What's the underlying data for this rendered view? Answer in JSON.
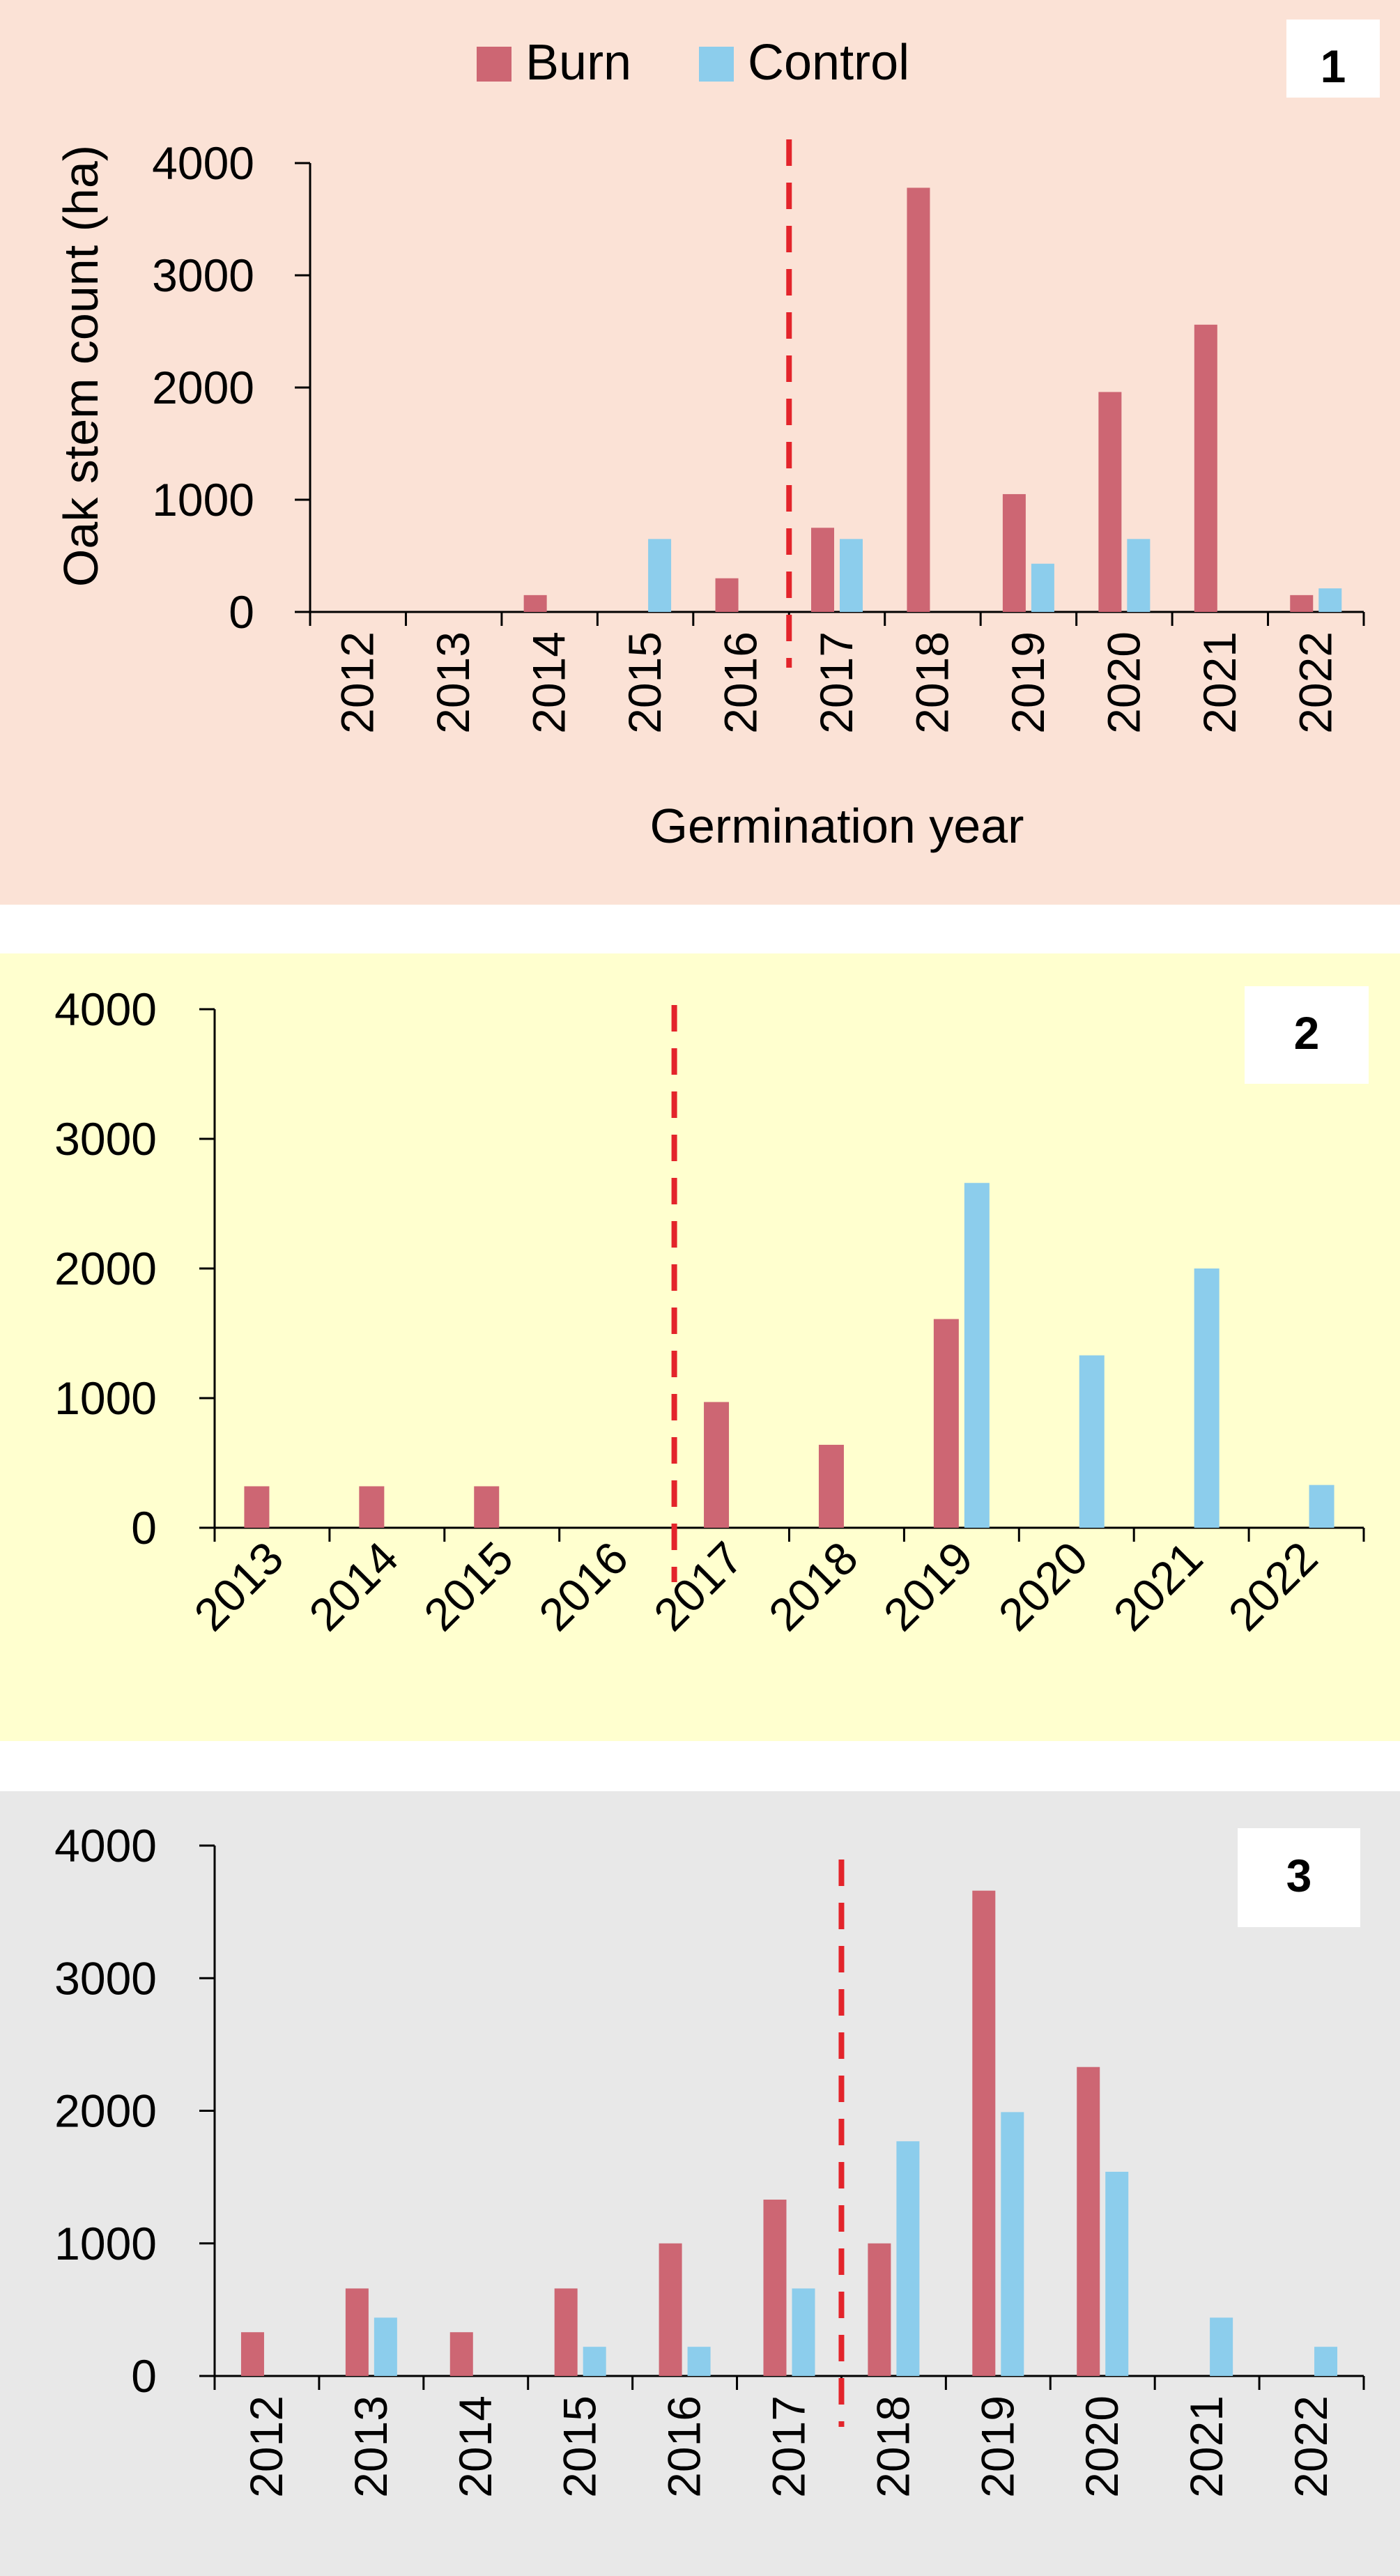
{
  "legend": [
    {
      "name": "Burn",
      "color": "#cd6673"
    },
    {
      "name": "Control",
      "color": "#8ccdec"
    }
  ],
  "colors": {
    "burn": "#cd6673",
    "control": "#8ccdec",
    "reference_line": "#e3242b",
    "panel1_bg": "#fbe2d6",
    "panel2_bg": "#ffffcf",
    "panel3_bg": "#e8e8e8"
  },
  "chart_data": [
    {
      "type": "bar",
      "panel_label": "1",
      "title": "",
      "xlabel": "Germination year",
      "ylabel": "Oak stem count (ha)",
      "ylim": [
        0,
        4000
      ],
      "yticks": [
        "0",
        "1000",
        "2000",
        "3000",
        "4000"
      ],
      "grid": false,
      "legend_position": "top-center",
      "tick_rotation": -90,
      "reference_line_between": [
        "2016",
        "2017"
      ],
      "categories": [
        "2012",
        "2013",
        "2014",
        "2015",
        "2016",
        "2017",
        "2018",
        "2019",
        "2020",
        "2021",
        "2022"
      ],
      "series": [
        {
          "name": "Burn",
          "values": [
            0,
            0,
            150,
            0,
            300,
            750,
            3780,
            1050,
            1960,
            2560,
            150
          ]
        },
        {
          "name": "Control",
          "values": [
            0,
            0,
            0,
            650,
            0,
            650,
            0,
            430,
            650,
            0,
            210
          ]
        }
      ]
    },
    {
      "type": "bar",
      "panel_label": "2",
      "title": "",
      "xlabel": "",
      "ylabel": "",
      "ylim": [
        0,
        4000
      ],
      "yticks": [
        "0",
        "1000",
        "2000",
        "3000",
        "4000"
      ],
      "grid": false,
      "tick_rotation": -45,
      "reference_line_between": [
        "2016",
        "2017"
      ],
      "categories": [
        "2013",
        "2014",
        "2015",
        "2016",
        "2017",
        "2018",
        "2019",
        "2020",
        "2021",
        "2022"
      ],
      "series": [
        {
          "name": "Burn",
          "values": [
            320,
            320,
            320,
            0,
            970,
            640,
            1610,
            0,
            0,
            0
          ]
        },
        {
          "name": "Control",
          "values": [
            0,
            0,
            0,
            0,
            0,
            0,
            2660,
            1330,
            2000,
            330
          ]
        }
      ]
    },
    {
      "type": "bar",
      "panel_label": "3",
      "title": "",
      "xlabel": "",
      "ylabel": "",
      "ylim": [
        0,
        4000
      ],
      "yticks": [
        "0",
        "1000",
        "2000",
        "3000",
        "4000"
      ],
      "grid": false,
      "tick_rotation": -90,
      "reference_line_between": [
        "2017",
        "2018"
      ],
      "categories": [
        "2012",
        "2013",
        "2014",
        "2015",
        "2016",
        "2017",
        "2018",
        "2019",
        "2020",
        "2021",
        "2022"
      ],
      "series": [
        {
          "name": "Burn",
          "values": [
            330,
            660,
            330,
            660,
            1000,
            1330,
            1000,
            3660,
            2330,
            0,
            0
          ]
        },
        {
          "name": "Control",
          "values": [
            0,
            440,
            0,
            220,
            220,
            660,
            1770,
            1990,
            1540,
            440,
            220
          ]
        }
      ]
    }
  ]
}
